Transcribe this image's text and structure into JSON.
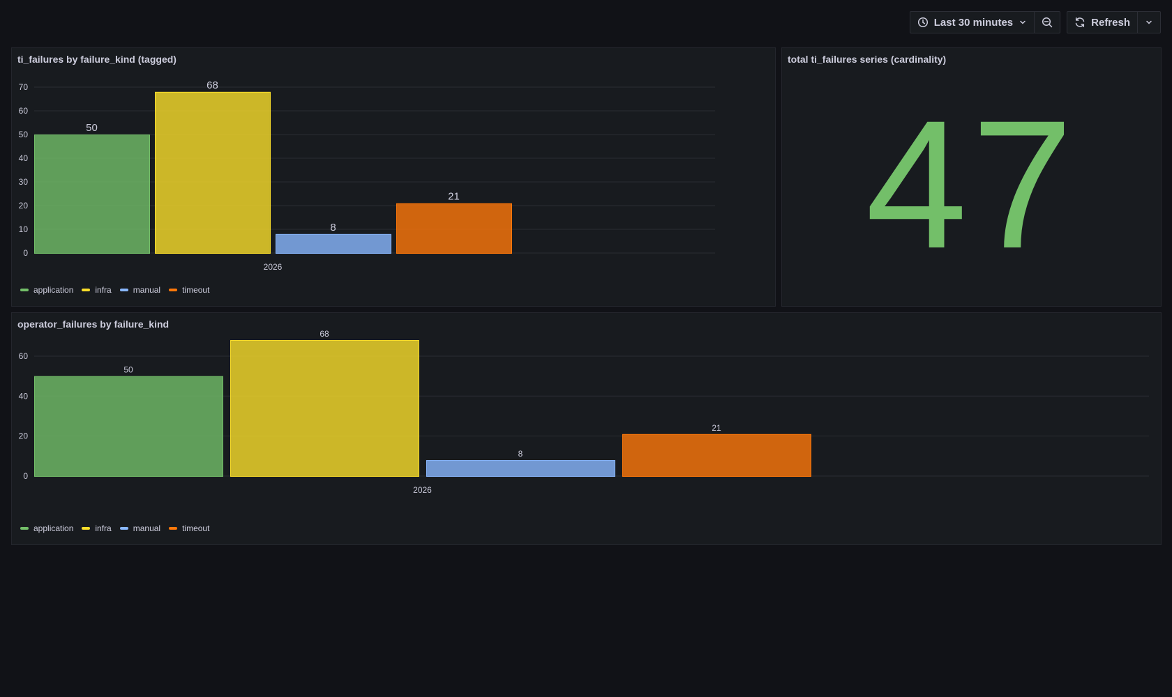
{
  "toolbar": {
    "time_range_label": "Last 30 minutes",
    "refresh_label": "Refresh",
    "icons": [
      "clock-icon",
      "chevron-down-icon",
      "zoom-out-icon",
      "refresh-icon",
      "chevron-down-icon"
    ]
  },
  "colors": {
    "application": "#73bf69",
    "infra": "#fade2a",
    "manual": "#8ab8ff",
    "timeout": "#ff780a"
  },
  "panels": {
    "p1": {
      "title": "ti_failures by failure_kind (tagged)"
    },
    "p2": {
      "title": "total ti_failures series (cardinality)",
      "value": "47"
    },
    "p3": {
      "title": "operator_failures by failure_kind"
    }
  },
  "legend": [
    "application",
    "infra",
    "manual",
    "timeout"
  ],
  "chart_data": [
    {
      "type": "bar",
      "title": "ti_failures by failure_kind (tagged)",
      "categories": [
        "2026"
      ],
      "series": [
        {
          "name": "application",
          "values": [
            50
          ]
        },
        {
          "name": "infra",
          "values": [
            68
          ]
        },
        {
          "name": "manual",
          "values": [
            8
          ]
        },
        {
          "name": "timeout",
          "values": [
            21
          ]
        }
      ],
      "yticks": [
        0,
        10,
        20,
        30,
        40,
        50,
        60,
        70
      ],
      "ylim": [
        0,
        70
      ],
      "grid": true,
      "legend_position": "bottom-left"
    },
    {
      "type": "bar",
      "title": "operator_failures by failure_kind",
      "categories": [
        "2026"
      ],
      "series": [
        {
          "name": "application",
          "values": [
            50
          ]
        },
        {
          "name": "infra",
          "values": [
            68
          ]
        },
        {
          "name": "manual",
          "values": [
            8
          ]
        },
        {
          "name": "timeout",
          "values": [
            21
          ]
        }
      ],
      "yticks": [
        0,
        20,
        40,
        60
      ],
      "ylim": [
        0,
        68
      ],
      "grid": true,
      "legend_position": "bottom-left"
    }
  ]
}
